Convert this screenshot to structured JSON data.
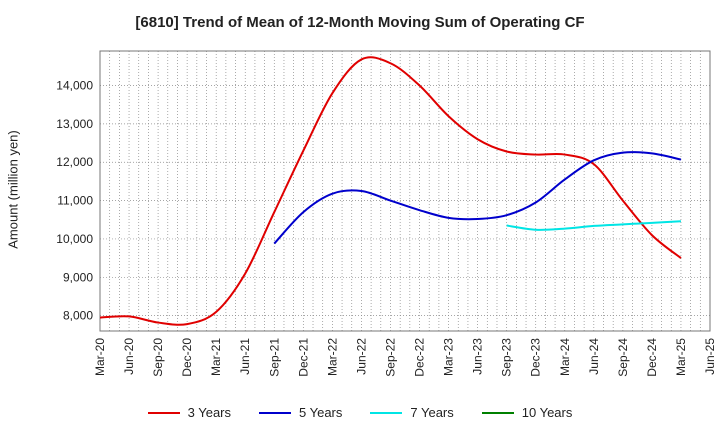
{
  "chart_data": {
    "type": "line",
    "title": "[6810]  Trend of Mean of 12-Month Moving Sum of Operating CF",
    "xlabel": "",
    "ylabel": "Amount (million yen)",
    "ylim": [
      7600,
      14900
    ],
    "yticks": [
      8000,
      9000,
      10000,
      11000,
      12000,
      13000,
      14000
    ],
    "ytick_labels": [
      "8,000",
      "9,000",
      "10,000",
      "11,000",
      "12,000",
      "13,000",
      "14,000"
    ],
    "x_categories": [
      "Mar-20",
      "Jun-20",
      "Sep-20",
      "Dec-20",
      "Mar-21",
      "Jun-21",
      "Sep-21",
      "Dec-21",
      "Mar-22",
      "Jun-22",
      "Sep-22",
      "Dec-22",
      "Mar-23",
      "Jun-23",
      "Sep-23",
      "Dec-23",
      "Mar-24",
      "Jun-24",
      "Sep-24",
      "Dec-24",
      "Mar-25",
      "Jun-25"
    ],
    "grid": true,
    "legend_position": "bottom",
    "series": [
      {
        "name": "3 Years",
        "color": "#e00000",
        "points": [
          [
            0,
            7950
          ],
          [
            1,
            7980
          ],
          [
            2,
            7820
          ],
          [
            3,
            7780
          ],
          [
            4,
            8100
          ],
          [
            5,
            9100
          ],
          [
            6,
            10700
          ],
          [
            7,
            12300
          ],
          [
            8,
            13800
          ],
          [
            9,
            14680
          ],
          [
            10,
            14580
          ],
          [
            11,
            14000
          ],
          [
            12,
            13200
          ],
          [
            13,
            12600
          ],
          [
            14,
            12280
          ],
          [
            15,
            12200
          ],
          [
            16,
            12200
          ],
          [
            17,
            11950
          ],
          [
            18,
            11000
          ],
          [
            19,
            10100
          ],
          [
            20,
            9500
          ]
        ]
      },
      {
        "name": "5 Years",
        "color": "#0000cc",
        "points": [
          [
            6,
            9880
          ],
          [
            7,
            10700
          ],
          [
            8,
            11180
          ],
          [
            9,
            11250
          ],
          [
            10,
            11000
          ],
          [
            11,
            10750
          ],
          [
            12,
            10550
          ],
          [
            13,
            10520
          ],
          [
            14,
            10620
          ],
          [
            15,
            10950
          ],
          [
            16,
            11550
          ],
          [
            17,
            12050
          ],
          [
            18,
            12250
          ],
          [
            19,
            12230
          ],
          [
            20,
            12070
          ]
        ]
      },
      {
        "name": "7 Years",
        "color": "#00e5e5",
        "points": [
          [
            14,
            10350
          ],
          [
            15,
            10240
          ],
          [
            16,
            10270
          ],
          [
            17,
            10340
          ],
          [
            18,
            10380
          ],
          [
            19,
            10420
          ],
          [
            20,
            10460
          ]
        ]
      },
      {
        "name": "10 Years",
        "color": "#008000",
        "points": []
      }
    ]
  }
}
